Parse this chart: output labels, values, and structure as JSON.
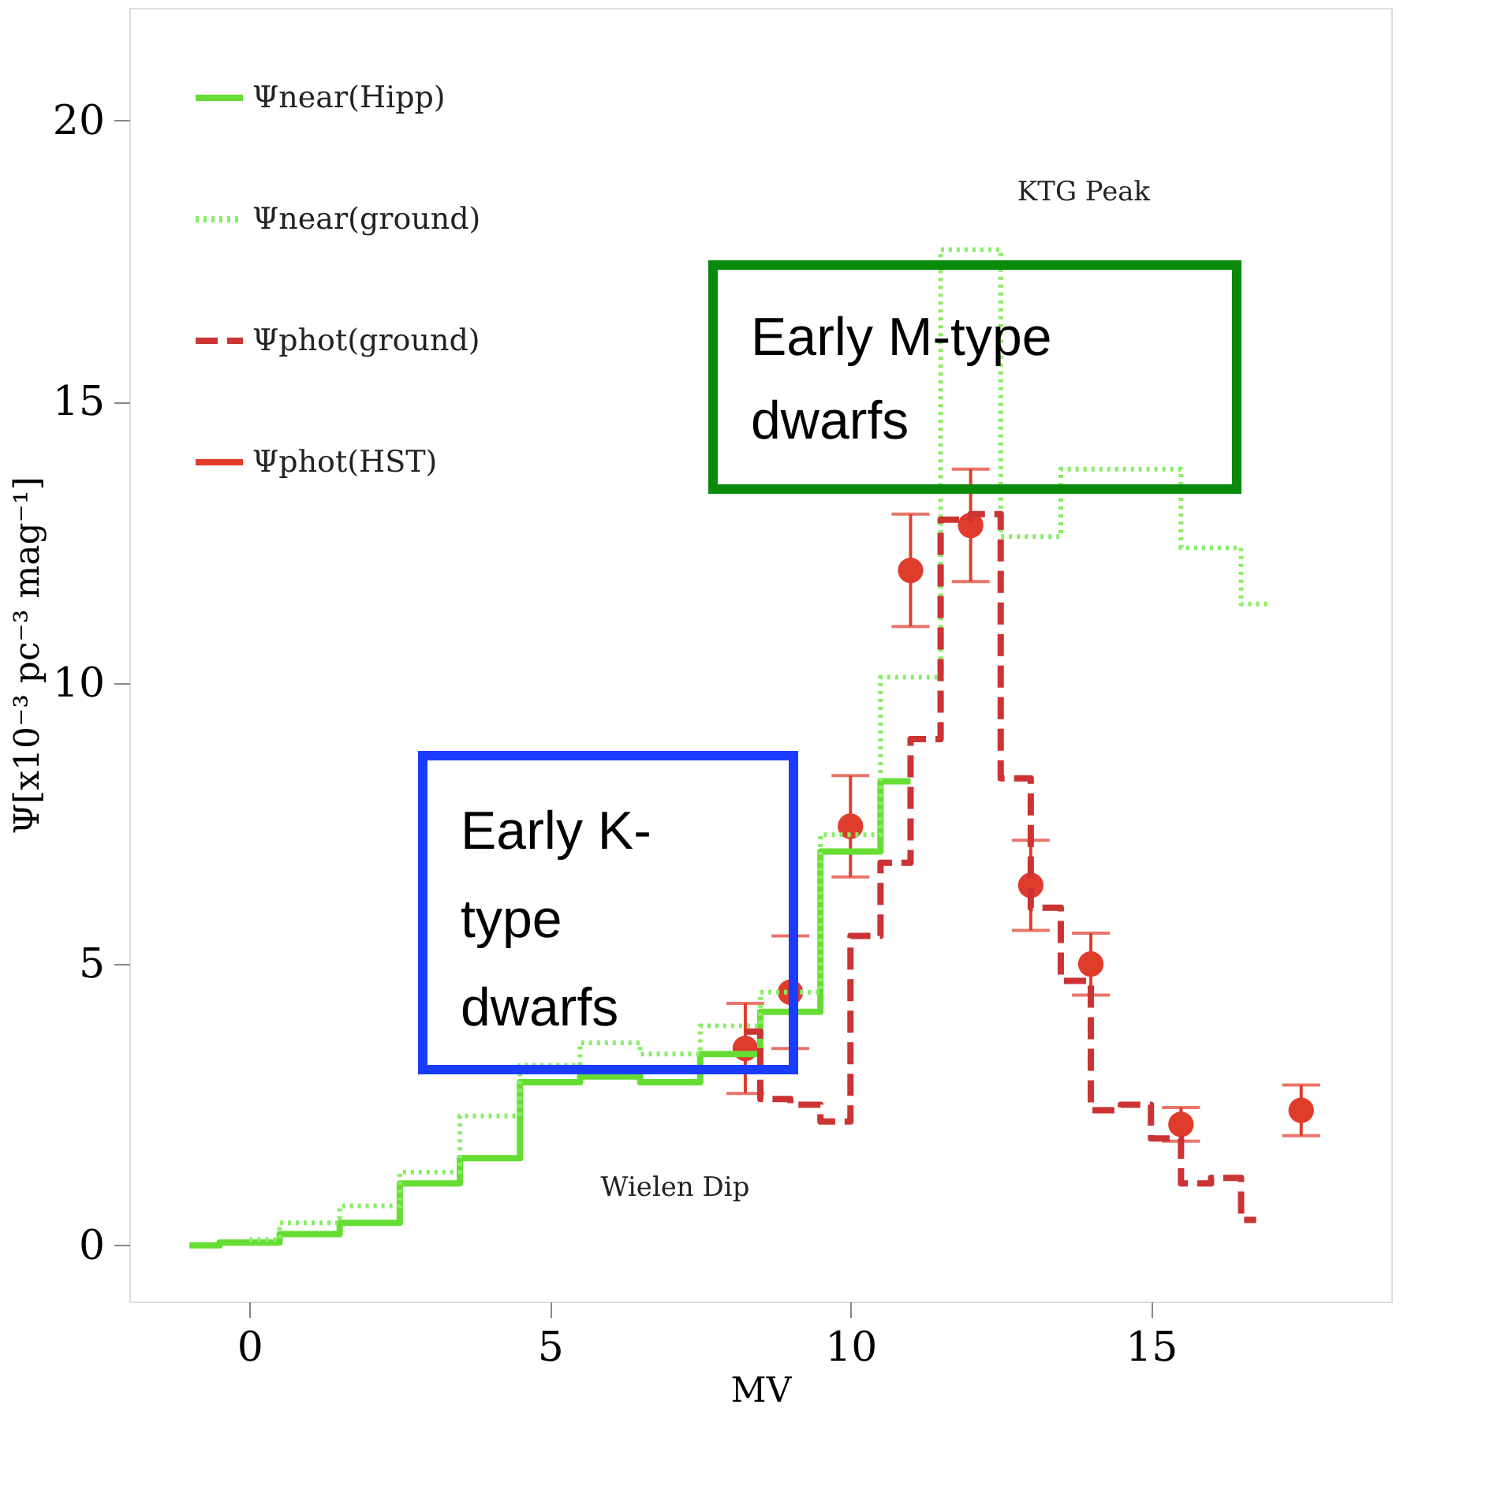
{
  "chart_data": {
    "type": "step",
    "xlabel": "MV",
    "ylabel": "Ψ[x10⁻³ pc⁻³ mag⁻¹]",
    "xlim": [
      -2,
      19
    ],
    "ylim": [
      -1,
      22
    ],
    "xticks": [
      0,
      5,
      10,
      15
    ],
    "yticks": [
      0,
      5,
      10,
      15,
      20
    ],
    "grid": false,
    "legend": "top left",
    "series": [
      {
        "name": "Ψnear(Hipp)",
        "line_style": "solid",
        "color": "#66dd33",
        "x": [
          -1,
          0,
          1,
          2,
          3,
          4,
          5,
          6,
          7,
          8,
          9,
          10,
          11
        ],
        "values": [
          0,
          0.05,
          0.2,
          0.4,
          1.1,
          1.55,
          2.9,
          3.0,
          2.9,
          3.4,
          4.15,
          7.0,
          8.25
        ]
      },
      {
        "name": "Ψnear(ground)",
        "line_style": "dotted",
        "color": "#88ee66",
        "x": [
          0,
          1,
          2,
          3,
          4,
          5,
          6,
          7,
          8,
          9,
          10,
          11,
          12,
          13,
          14,
          15,
          16,
          17
        ],
        "values": [
          0.1,
          0.4,
          0.7,
          1.3,
          2.3,
          3.2,
          3.6,
          3.4,
          3.9,
          4.5,
          7.3,
          10.1,
          17.7,
          12.6,
          13.8,
          13.8,
          12.4,
          11.4
        ]
      },
      {
        "name": "Ψphot(ground)",
        "line_style": "dashed",
        "color": "#cc3333",
        "x": [
          8.25,
          8.75,
          9.25,
          9.75,
          10.25,
          10.75,
          11.25,
          11.75,
          12.25,
          12.75,
          13.25,
          13.75,
          14.25,
          14.75,
          15.25,
          15.75,
          16.25,
          16.75
        ],
        "values": [
          3.8,
          2.6,
          2.5,
          2.2,
          5.5,
          6.8,
          9.0,
          12.9,
          13.0,
          8.3,
          6.0,
          4.7,
          2.4,
          2.5,
          1.9,
          1.1,
          1.2,
          0.45
        ]
      },
      {
        "name": "Ψphot(HST)",
        "type": "scatter",
        "marker": "circle",
        "color": "#e03c2c",
        "x": [
          8.25,
          9,
          10,
          11,
          12,
          13,
          14,
          15.5,
          17.5
        ],
        "values": [
          3.5,
          4.5,
          7.45,
          12.0,
          12.8,
          6.4,
          5.0,
          2.15,
          2.4
        ],
        "errors": [
          0.8,
          1.0,
          0.9,
          1.0,
          1.0,
          0.8,
          0.55,
          0.3,
          0.45
        ]
      }
    ],
    "annotations": [
      "KTG Peak",
      "Wielen Dip",
      "Early M-type dwarfs",
      "Early K-type dwarfs"
    ]
  }
}
